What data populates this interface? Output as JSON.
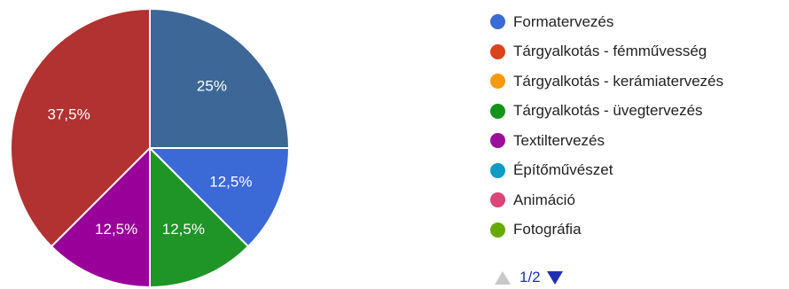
{
  "chart_data": {
    "type": "pie",
    "slices": [
      {
        "name": "Formatervezés",
        "value": 25,
        "label": "25%",
        "color": "#3c6797"
      },
      {
        "name": "Tárgyalkotás - fémművesség",
        "value": 12.5,
        "label": "12,5%",
        "color": "#3b69d6"
      },
      {
        "name": "Tárgyalkotás - kerámiatervezés",
        "value": 12.5,
        "label": "12,5%",
        "color": "#1e9526"
      },
      {
        "name": "Tárgyalkotás - üvegtervezés",
        "value": 12.5,
        "label": "12,5%",
        "color": "#990099"
      },
      {
        "name": "Textiltervezés",
        "value": 37.5,
        "label": "37,5%",
        "color": "#b23131"
      }
    ],
    "legend": {
      "placement": "right",
      "items": [
        {
          "label": "Formatervezés",
          "color": "#3a6ad3"
        },
        {
          "label": "Tárgyalkotás - fémművesség",
          "color": "#d9441a"
        },
        {
          "label": "Tárgyalkotás - kerámiatervezés",
          "color": "#f59a0c"
        },
        {
          "label": "Tárgyalkotás - üvegtervezés",
          "color": "#139419"
        },
        {
          "label": "Textiltervezés",
          "color": "#99109a"
        },
        {
          "label": "Építőművészet",
          "color": "#109bc4"
        },
        {
          "label": "Animáció",
          "color": "#dd4477"
        },
        {
          "label": "Fotográfia",
          "color": "#66aa00"
        }
      ]
    }
  },
  "pager": {
    "text": "1/2",
    "prev_icon": "triangle-up-icon",
    "next_icon": "triangle-down-icon",
    "prev_color": "#c8c8c8",
    "next_color": "#1f2fb5"
  }
}
